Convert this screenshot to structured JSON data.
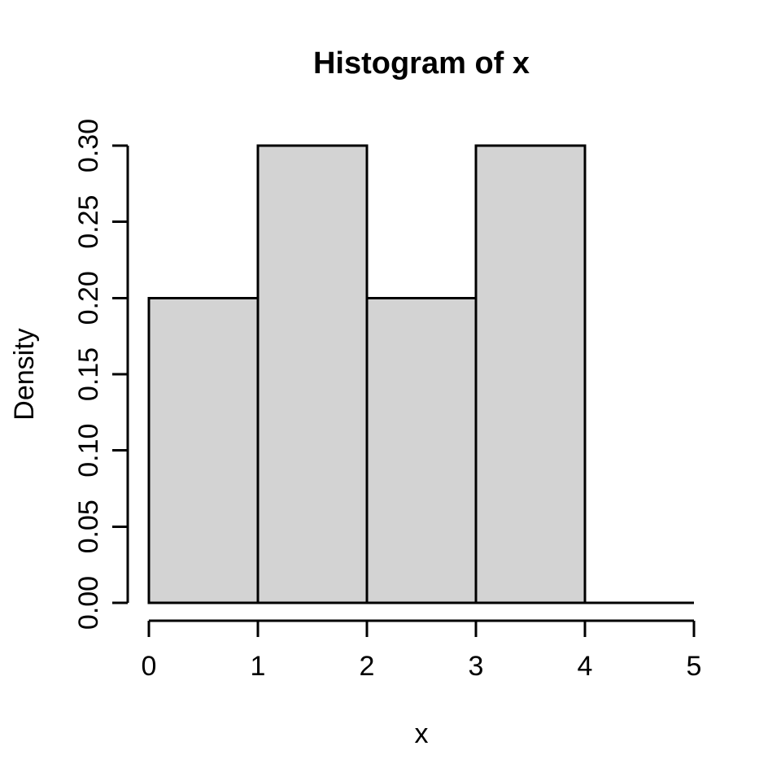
{
  "chart_data": {
    "type": "bar",
    "subtype": "histogram",
    "title": "Histogram of x",
    "xlabel": "x",
    "ylabel": "Density",
    "bins": [
      {
        "from": 0,
        "to": 1,
        "density": 0.2
      },
      {
        "from": 1,
        "to": 2,
        "density": 0.3
      },
      {
        "from": 2,
        "to": 3,
        "density": 0.2
      },
      {
        "from": 3,
        "to": 4,
        "density": 0.3
      },
      {
        "from": 4,
        "to": 5,
        "density": 0.0
      }
    ],
    "x_ticks": [
      "0",
      "1",
      "2",
      "3",
      "4",
      "5"
    ],
    "y_ticks": [
      "0.00",
      "0.05",
      "0.10",
      "0.15",
      "0.20",
      "0.25",
      "0.30"
    ],
    "xlim": [
      0,
      5
    ],
    "ylim": [
      0,
      0.3
    ],
    "grid": false,
    "legend": null,
    "colors": {
      "bar_fill": "#d3d3d3",
      "bar_stroke": "#000000",
      "axis": "#000000",
      "text": "#000000",
      "background": "#ffffff"
    }
  }
}
